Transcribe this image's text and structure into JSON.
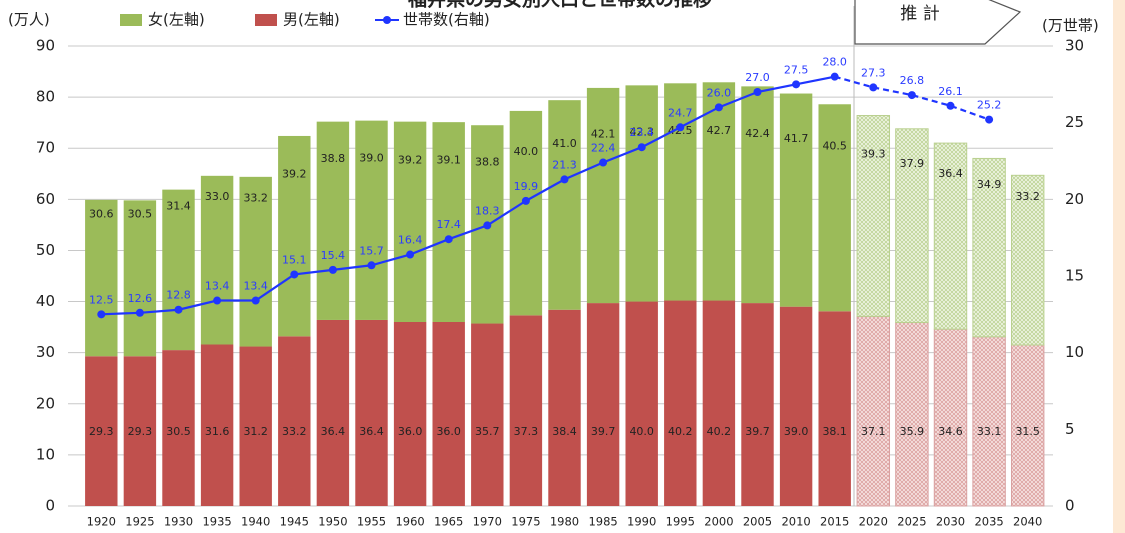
{
  "chart_data": {
    "type": "bar",
    "title": "福井県の男女別人口と世帯数の推移",
    "annotation": "推 計",
    "y_label": "(万人)",
    "y2_label": "(万世帯)",
    "projection_from": "2020",
    "categories": [
      "1920",
      "1925",
      "1930",
      "1935",
      "1940",
      "1945",
      "1950",
      "1955",
      "1960",
      "1965",
      "1970",
      "1975",
      "1980",
      "1985",
      "1990",
      "1995",
      "2000",
      "2005",
      "2010",
      "2015",
      "2020",
      "2025",
      "2030",
      "2035",
      "2040"
    ],
    "series": [
      {
        "name": "女(左軸)",
        "color": "#9bbb59",
        "stack": true,
        "values": [
          30.6,
          30.5,
          31.4,
          33.0,
          33.2,
          39.2,
          38.8,
          39.0,
          39.2,
          39.1,
          38.8,
          40.0,
          41.0,
          42.1,
          42.3,
          42.5,
          42.7,
          42.4,
          41.7,
          40.5,
          39.3,
          37.9,
          36.4,
          34.9,
          33.2
        ],
        "value_labels": [
          "30.6",
          "30.5",
          "31.4",
          "33.0",
          "33.2",
          "39.2",
          "38.8",
          "39.0",
          "39.2",
          "39.1",
          "38.8",
          "40.0",
          "41.0",
          "42.1",
          "42.3",
          "42.5",
          "42.7",
          "42.4",
          "41.7",
          "40.5",
          "39.3",
          "37.9",
          "36.4",
          "34.9",
          "33.2"
        ]
      },
      {
        "name": "男(左軸)",
        "color": "#c0504d",
        "stack": true,
        "values": [
          29.3,
          29.3,
          30.5,
          31.6,
          31.2,
          33.2,
          36.4,
          36.4,
          36.0,
          36.0,
          35.7,
          37.3,
          38.4,
          39.7,
          40.0,
          40.2,
          40.2,
          39.7,
          39.0,
          38.1,
          37.1,
          35.9,
          34.6,
          33.1,
          31.5
        ],
        "value_labels": [
          "29.3",
          "29.3",
          "30.5",
          "31.6",
          "31.2",
          "33.2",
          "36.4",
          "36.4",
          "36.0",
          "36.0",
          "35.7",
          "37.3",
          "38.4",
          "39.7",
          "40.0",
          "40.2",
          "40.2",
          "39.7",
          "39.0",
          "38.1",
          "37.1",
          "35.9",
          "34.6",
          "33.1",
          "31.5"
        ]
      },
      {
        "name": "世帯数(右軸)",
        "color": "#1f35ff",
        "type": "line",
        "axis": "y2",
        "values": [
          12.5,
          12.6,
          12.8,
          13.4,
          13.4,
          15.1,
          15.4,
          15.7,
          16.4,
          17.4,
          18.3,
          19.9,
          21.3,
          22.4,
          23.4,
          24.7,
          26.0,
          27.0,
          27.5,
          28.0,
          27.3,
          26.8,
          26.1,
          25.2,
          null
        ],
        "value_labels": [
          "12.5",
          "12.6",
          "12.8",
          "13.4",
          "13.4",
          "15.1",
          "15.4",
          "15.7",
          "16.4",
          "17.4",
          "18.3",
          "19.9",
          "21.3",
          "22.4",
          "23.4",
          "24.7",
          "26.0",
          "27.0",
          "27.5",
          "28.0",
          "27.3",
          "26.8",
          "26.1",
          "25.2",
          null
        ]
      }
    ],
    "ylim": [
      0,
      90
    ],
    "yticks": [
      0,
      10,
      20,
      30,
      40,
      50,
      60,
      70,
      80,
      90
    ],
    "y2lim": [
      0,
      30
    ],
    "y2ticks": [
      0,
      5,
      10,
      15,
      20,
      25,
      30
    ],
    "grid": true
  }
}
